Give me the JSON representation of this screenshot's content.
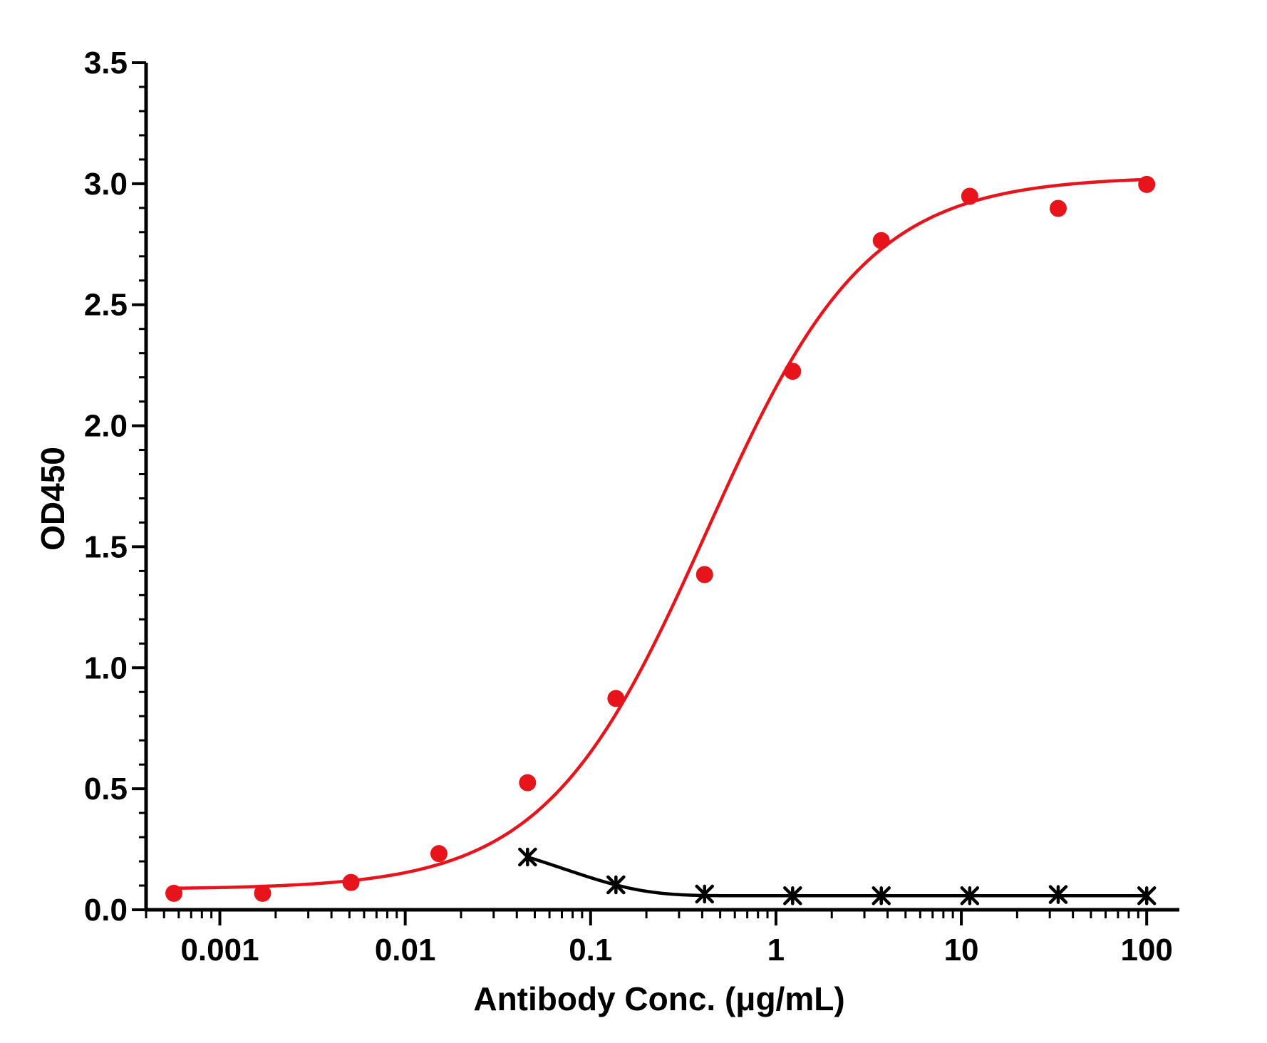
{
  "chart_data": {
    "type": "scatter",
    "title": "",
    "xlabel": "Antibody Conc. (μg/mL)",
    "ylabel": "OD450",
    "xscale": "log",
    "xlim": [
      0.0004,
      150
    ],
    "ylim": [
      0,
      3.5
    ],
    "x_tick_labels": [
      "0.001",
      "0.01",
      "0.1",
      "1",
      "10",
      "100"
    ],
    "x_ticks": [
      0.001,
      0.01,
      0.1,
      1,
      10,
      100
    ],
    "y_tick_labels": [
      "0.0",
      "0.5",
      "1.0",
      "1.5",
      "2.0",
      "2.5",
      "3.0",
      "3.5"
    ],
    "y_ticks": [
      0,
      0.5,
      1.0,
      1.5,
      2.0,
      2.5,
      3.0,
      3.5
    ],
    "grid": false,
    "legend": "none",
    "series": [
      {
        "marker": "circle",
        "color": "#e8141b",
        "x": [
          0.000565,
          0.0017,
          0.0051,
          0.0152,
          0.0457,
          0.137,
          0.412,
          1.23,
          3.7,
          11.1,
          33.3,
          100
        ],
        "y": [
          0.068,
          0.068,
          0.113,
          0.232,
          0.525,
          0.873,
          1.385,
          2.225,
          2.765,
          2.948,
          2.898,
          2.997
        ],
        "fit": {
          "kind": "4PL",
          "bottom": 0.085,
          "top": 3.03,
          "ec50": 0.42,
          "hill": 1.0,
          "x_from": 0.000565,
          "x_to": 100
        }
      },
      {
        "marker": "asterisk",
        "color": "#000000",
        "x": [
          0.0457,
          0.137,
          0.412,
          1.23,
          3.7,
          11.1,
          33.3,
          100
        ],
        "y": [
          0.218,
          0.103,
          0.065,
          0.058,
          0.058,
          0.058,
          0.063,
          0.058
        ],
        "fit": {
          "kind": "decay",
          "bottom": 0.058,
          "span": 0.16,
          "k": 14,
          "x_from": 0.0457,
          "x_to": 100
        }
      }
    ]
  }
}
